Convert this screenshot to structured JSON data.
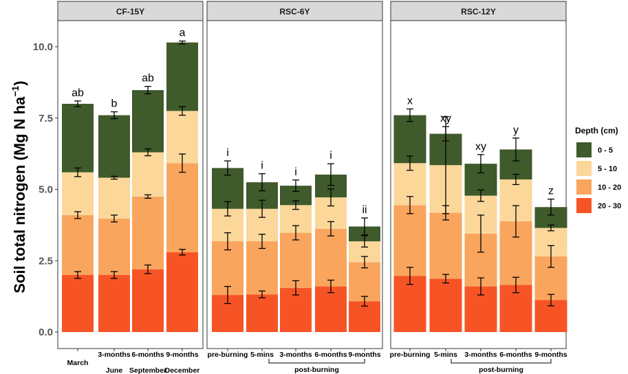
{
  "chart_data": {
    "type": "bar",
    "stacked": true,
    "y_axis": {
      "title_main": "Soil total nitrogen (Mg N ha",
      "title_sup": "−1",
      "title_end": ")",
      "ylim": [
        0,
        11
      ],
      "ticks": [
        0,
        2.5,
        5,
        7.5,
        10
      ],
      "tick_labels": [
        "0.0",
        "2.5",
        "5.0",
        "7.5",
        "10.0"
      ]
    },
    "legend": {
      "title": "Depth (cm)",
      "placement": "right",
      "entries": [
        "0 - 5",
        "5 - 10",
        "10 - 20",
        "20 - 30"
      ]
    },
    "colors": [
      "#3f5a2b",
      "#fbd79a",
      "#f9a55e",
      "#f75426"
    ],
    "panels": [
      {
        "name": "CF-15Y",
        "categories": [
          "March",
          "3-months",
          "6-months",
          "9-months"
        ],
        "x_labels": [
          [
            "",
            "March"
          ],
          [
            "3-months",
            "June"
          ],
          [
            "6-months",
            "September"
          ],
          [
            "9-months",
            "December"
          ]
        ],
        "group_label": "",
        "group_span": [],
        "letters": [
          "ab",
          "b",
          "ab",
          "a"
        ],
        "cumulative": [
          [
            2.0,
            4.1,
            5.6,
            8.0
          ],
          [
            2.0,
            3.98,
            5.41,
            7.6
          ],
          [
            2.2,
            4.75,
            6.3,
            8.48
          ],
          [
            2.8,
            5.92,
            7.75,
            10.15
          ]
        ],
        "errors": [
          [
            0.12,
            0.12,
            0.15,
            0.1
          ],
          [
            0.12,
            0.12,
            0.05,
            0.12
          ],
          [
            0.15,
            0.06,
            0.12,
            0.13
          ],
          [
            0.1,
            0.32,
            0.15,
            0.05
          ]
        ]
      },
      {
        "name": "RSC-6Y",
        "categories": [
          "pre-burning",
          "5-mins",
          "3-months",
          "6-months",
          "9-months"
        ],
        "x_labels": [
          [
            "pre-burning"
          ],
          [
            "5-mins"
          ],
          [
            "3-months"
          ],
          [
            "6-months"
          ],
          [
            "9-months"
          ]
        ],
        "group_label": "post-burning",
        "group_span": [
          1,
          4
        ],
        "letters": [
          "i",
          "i",
          "i",
          "i",
          "ii"
        ],
        "cumulative": [
          [
            1.3,
            3.18,
            4.32,
            5.75
          ],
          [
            1.32,
            3.18,
            4.32,
            5.25
          ],
          [
            1.55,
            3.48,
            4.45,
            5.13
          ],
          [
            1.6,
            3.62,
            4.72,
            5.52
          ],
          [
            1.08,
            2.45,
            3.18,
            3.7
          ]
        ],
        "errors": [
          [
            0.3,
            0.3,
            0.25,
            0.25
          ],
          [
            0.12,
            0.25,
            0.3,
            0.3
          ],
          [
            0.25,
            0.25,
            0.15,
            0.2
          ],
          [
            0.22,
            0.25,
            0.3,
            0.38
          ],
          [
            0.17,
            0.2,
            0.2,
            0.3
          ]
        ]
      },
      {
        "name": "RSC-12Y",
        "categories": [
          "pre-burning",
          "5-mins",
          "3-months",
          "6-months",
          "9-months"
        ],
        "x_labels": [
          [
            "pre-burning"
          ],
          [
            "5-mins"
          ],
          [
            "3-months"
          ],
          [
            "6-months"
          ],
          [
            "9-months"
          ]
        ],
        "group_label": "post-burning",
        "group_span": [
          1,
          4
        ],
        "letters": [
          "x",
          "xy",
          "xy",
          "y",
          "z"
        ],
        "cumulative": [
          [
            1.97,
            4.45,
            5.92,
            7.6
          ],
          [
            1.87,
            4.18,
            5.85,
            6.95
          ],
          [
            1.6,
            3.45,
            4.78,
            5.9
          ],
          [
            1.65,
            3.88,
            5.35,
            6.4
          ],
          [
            1.12,
            2.65,
            3.65,
            4.38
          ]
        ],
        "errors": [
          [
            0.3,
            0.3,
            0.25,
            0.22
          ],
          [
            0.15,
            0.25,
            1.7,
            0.25
          ],
          [
            0.3,
            0.65,
            0.2,
            0.32
          ],
          [
            0.27,
            0.55,
            0.18,
            0.4
          ],
          [
            0.2,
            0.38,
            0.1,
            0.28
          ]
        ]
      }
    ]
  }
}
